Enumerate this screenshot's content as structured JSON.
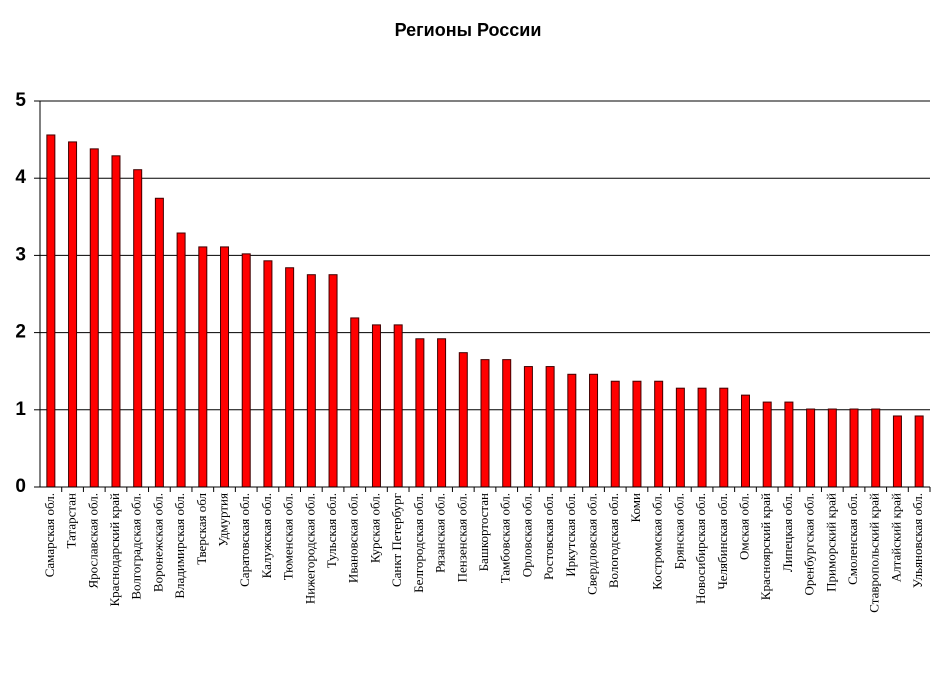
{
  "chart_data": {
    "type": "bar",
    "title": "Регионы России",
    "categories": [
      "Самарская обл.",
      "Татарстан",
      "Ярославская обл.",
      "Краснодарский край",
      "Волгоградская обл.",
      "Воронежская обл.",
      "Владимирская обл.",
      "Тверская обл",
      "Удмуртия",
      "Саратовская обл.",
      "Калужская обл.",
      "Тюменская обл.",
      "Нижегородская обл.",
      "Тульская обл.",
      "Ивановская обл.",
      "Курская обл.",
      "Санкт Петербург",
      "Белгородская обл.",
      "Рязанская обл.",
      "Пензенская обл.",
      "Башкортостан",
      "Тамбовская обл.",
      "Орловская обл.",
      "Ростовская обл.",
      "Иркутская обл.",
      "Свердловская обл.",
      "Вологодская обл.",
      "Коми",
      "Костромская обл.",
      "Брянская обл.",
      "Новосибирская обл.",
      "Челябинская обл.",
      "Омская обл.",
      "Красноярский край",
      "Липецкая обл.",
      "Оренбургская обл.",
      "Приморский край",
      "Смоленская обл.",
      "Ставропольский край",
      "Алтайский край",
      "Ульяновская обл."
    ],
    "values": [
      4.56,
      4.47,
      4.38,
      4.29,
      4.11,
      3.74,
      3.29,
      3.11,
      3.11,
      3.02,
      2.93,
      2.84,
      2.75,
      2.75,
      2.19,
      2.1,
      2.1,
      1.92,
      1.92,
      1.74,
      1.65,
      1.65,
      1.56,
      1.56,
      1.46,
      1.46,
      1.37,
      1.37,
      1.37,
      1.28,
      1.28,
      1.28,
      1.19,
      1.1,
      1.1,
      1.01,
      1.01,
      1.01,
      1.01,
      0.92,
      0.92
    ],
    "color": "#ff0000",
    "ylim": [
      0,
      5
    ],
    "yticks": [
      0,
      1,
      2,
      3,
      4,
      5
    ],
    "grid": true
  }
}
